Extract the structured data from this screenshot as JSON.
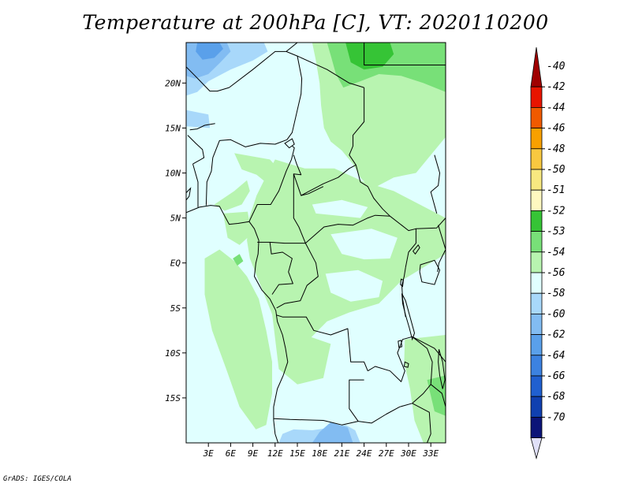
{
  "title": "Temperature at 200hPa [C], VT: 2020110200",
  "credit": "GrADS: IGES/COLA",
  "map": {
    "lon_range": [
      0,
      35
    ],
    "lat_range": [
      -20,
      24.5
    ],
    "lat_ticks": [
      {
        "value": 20,
        "label": "20N"
      },
      {
        "value": 15,
        "label": "15N"
      },
      {
        "value": 10,
        "label": "10N"
      },
      {
        "value": 5,
        "label": "5N"
      },
      {
        "value": 0,
        "label": "EQ"
      },
      {
        "value": -5,
        "label": "5S"
      },
      {
        "value": -10,
        "label": "10S"
      },
      {
        "value": -15,
        "label": "15S"
      }
    ],
    "lon_ticks": [
      {
        "value": 3,
        "label": "3E"
      },
      {
        "value": 6,
        "label": "6E"
      },
      {
        "value": 9,
        "label": "9E"
      },
      {
        "value": 12,
        "label": "12E"
      },
      {
        "value": 15,
        "label": "15E"
      },
      {
        "value": 18,
        "label": "18E"
      },
      {
        "value": 21,
        "label": "21E"
      },
      {
        "value": 24,
        "label": "24E"
      },
      {
        "value": 27,
        "label": "27E"
      },
      {
        "value": 30,
        "label": "30E"
      },
      {
        "value": 33,
        "label": "33E"
      }
    ]
  },
  "colorbar": {
    "levels": [
      {
        "label": "-40",
        "color": "#a00000"
      },
      {
        "label": "-42",
        "color": "#e81400"
      },
      {
        "label": "-44",
        "color": "#f05a00"
      },
      {
        "label": "-46",
        "color": "#f8a000"
      },
      {
        "label": "-48",
        "color": "#f8c840"
      },
      {
        "label": "-50",
        "color": "#f8e880"
      },
      {
        "label": "-51",
        "color": "#fff8c0"
      },
      {
        "label": "-52",
        "color": "#36c436"
      },
      {
        "label": "-53",
        "color": "#78e078"
      },
      {
        "label": "-54",
        "color": "#b8f4b0"
      },
      {
        "label": "-56",
        "color": "#e0ffff"
      },
      {
        "label": "-58",
        "color": "#a8d8fa"
      },
      {
        "label": "-60",
        "color": "#82bcf2"
      },
      {
        "label": "-62",
        "color": "#5aa0ea"
      },
      {
        "label": "-64",
        "color": "#3c82e0"
      },
      {
        "label": "-66",
        "color": "#2060d0"
      },
      {
        "label": "-68",
        "color": "#1040b0"
      },
      {
        "label": "-70",
        "color": "#0c1478"
      }
    ],
    "bottom_color": "#e0e0f8"
  },
  "colors": {
    "background_field": "#e0ffff",
    "cold_light": "#a8d8fa",
    "cold_mid": "#82bcf2",
    "cold_dark": "#5aa0ea",
    "warm_light": "#b8f4b0",
    "warm_mid": "#78e078",
    "warm_dark": "#36c436",
    "border": "#000000"
  }
}
